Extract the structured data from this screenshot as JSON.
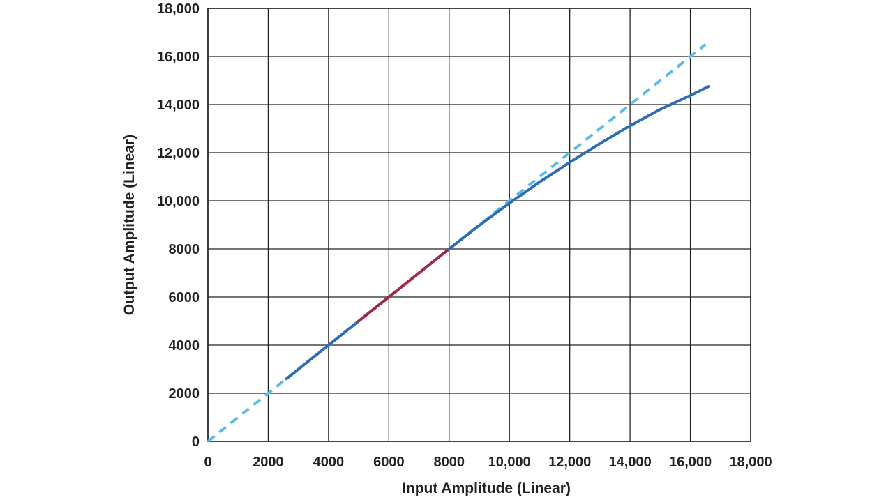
{
  "chart_data": {
    "type": "line",
    "title": "",
    "xlabel": "Input Amplitude (Linear)",
    "ylabel": "Output Amplitude (Linear)",
    "xlim": [
      0,
      18000
    ],
    "ylim": [
      0,
      18000
    ],
    "x_ticks": [
      "0",
      "2000",
      "4000",
      "6000",
      "8000",
      "10,000",
      "12,000",
      "14,000",
      "16,000",
      "18,000"
    ],
    "y_ticks": [
      "0",
      "2000",
      "4000",
      "6000",
      "8000",
      "10,000",
      "12,000",
      "14,000",
      "16,000",
      "18,000"
    ],
    "x_tick_values": [
      0,
      2000,
      4000,
      6000,
      8000,
      10000,
      12000,
      14000,
      16000,
      18000
    ],
    "y_tick_values": [
      0,
      2000,
      4000,
      6000,
      8000,
      10000,
      12000,
      14000,
      16000,
      18000
    ],
    "grid": true,
    "legend": "none",
    "series": [
      {
        "style": "dashed",
        "color": "#5bbce8",
        "x": [
          0,
          16500
        ],
        "y": [
          0,
          16500
        ]
      },
      {
        "style": "solid",
        "color": "#2e6db4",
        "x": [
          2600,
          4000,
          5000
        ],
        "y": [
          2600,
          4000,
          5000
        ]
      },
      {
        "style": "solid",
        "color": "#9e2a45",
        "x": [
          5000,
          6000,
          8000
        ],
        "y": [
          5000,
          6000,
          8000
        ]
      },
      {
        "style": "solid",
        "color": "#2e6db4",
        "x": [
          8000,
          9000,
          10000,
          11000,
          12000,
          13000,
          14000,
          15000,
          16000,
          16600
        ],
        "y": [
          8000,
          8980,
          9900,
          10780,
          11600,
          12380,
          13120,
          13800,
          14380,
          14750
        ]
      }
    ]
  }
}
